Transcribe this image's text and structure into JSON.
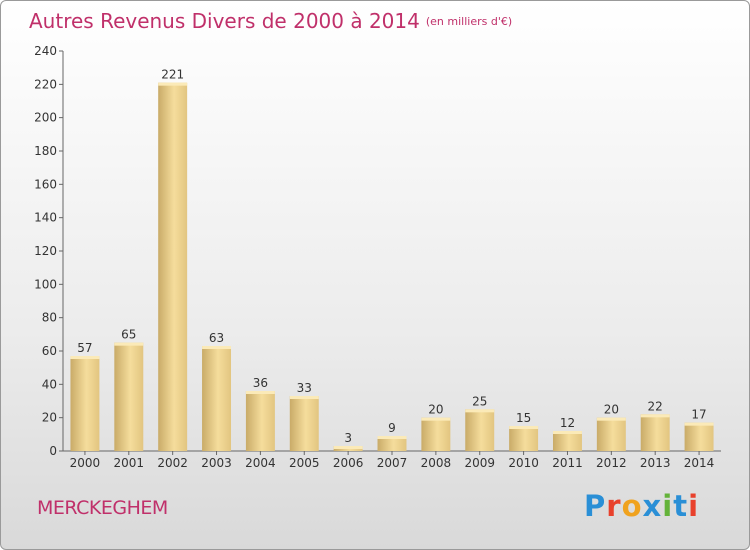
{
  "title": "Autres Revenus Divers de 2000 à 2014",
  "unit": "(en milliers d'€)",
  "commune": "MERCKEGHEM",
  "logo": {
    "text": "Proxiti",
    "colors": [
      "#2a8fd6",
      "#e8412c",
      "#f0a21e",
      "#2a8fd6",
      "#64b33a",
      "#2a8fd6",
      "#e8412c"
    ]
  },
  "colors": {
    "title": "#c0306a",
    "bar_light": "#f7e2a4",
    "bar_dark": "#cdb06c",
    "axis": "#666666"
  },
  "chart_data": {
    "type": "bar",
    "categories": [
      "2000",
      "2001",
      "2002",
      "2003",
      "2004",
      "2005",
      "2006",
      "2007",
      "2008",
      "2009",
      "2010",
      "2011",
      "2012",
      "2013",
      "2014"
    ],
    "values": [
      57,
      65,
      221,
      63,
      36,
      33,
      3,
      9,
      20,
      25,
      15,
      12,
      20,
      22,
      17
    ],
    "ylim": [
      0,
      240
    ],
    "yticks": [
      0,
      20,
      40,
      60,
      80,
      100,
      120,
      140,
      160,
      180,
      200,
      220,
      240
    ],
    "grid": false,
    "legend": "none"
  }
}
